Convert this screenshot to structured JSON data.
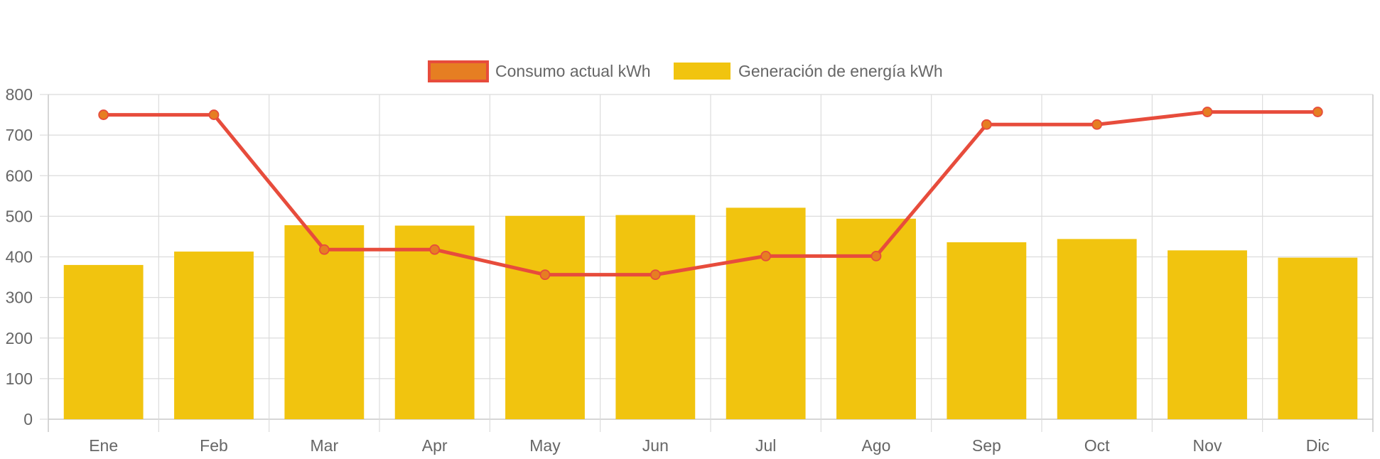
{
  "chart_data": {
    "type": "bar",
    "title": "",
    "categories": [
      "Ene",
      "Feb",
      "Mar",
      "Apr",
      "May",
      "Jun",
      "Jul",
      "Ago",
      "Sep",
      "Oct",
      "Nov",
      "Dic"
    ],
    "series": [
      {
        "name": "Consumo actual kWh",
        "type": "line",
        "values": [
          750,
          750,
          418,
          418,
          356,
          356,
          402,
          402,
          726,
          726,
          757,
          757
        ],
        "color": "#e74c3c",
        "point_color": "#e67e22"
      },
      {
        "name": "Generación de energía kWh",
        "type": "bar",
        "values": [
          380,
          413,
          478,
          477,
          501,
          503,
          521,
          494,
          436,
          444,
          416,
          398
        ],
        "color": "#f1c40f"
      }
    ],
    "ylim": [
      0,
      800
    ],
    "y_ticks": [
      0,
      100,
      200,
      300,
      400,
      500,
      600,
      700,
      800
    ],
    "grid": true,
    "legend": "top-center"
  }
}
